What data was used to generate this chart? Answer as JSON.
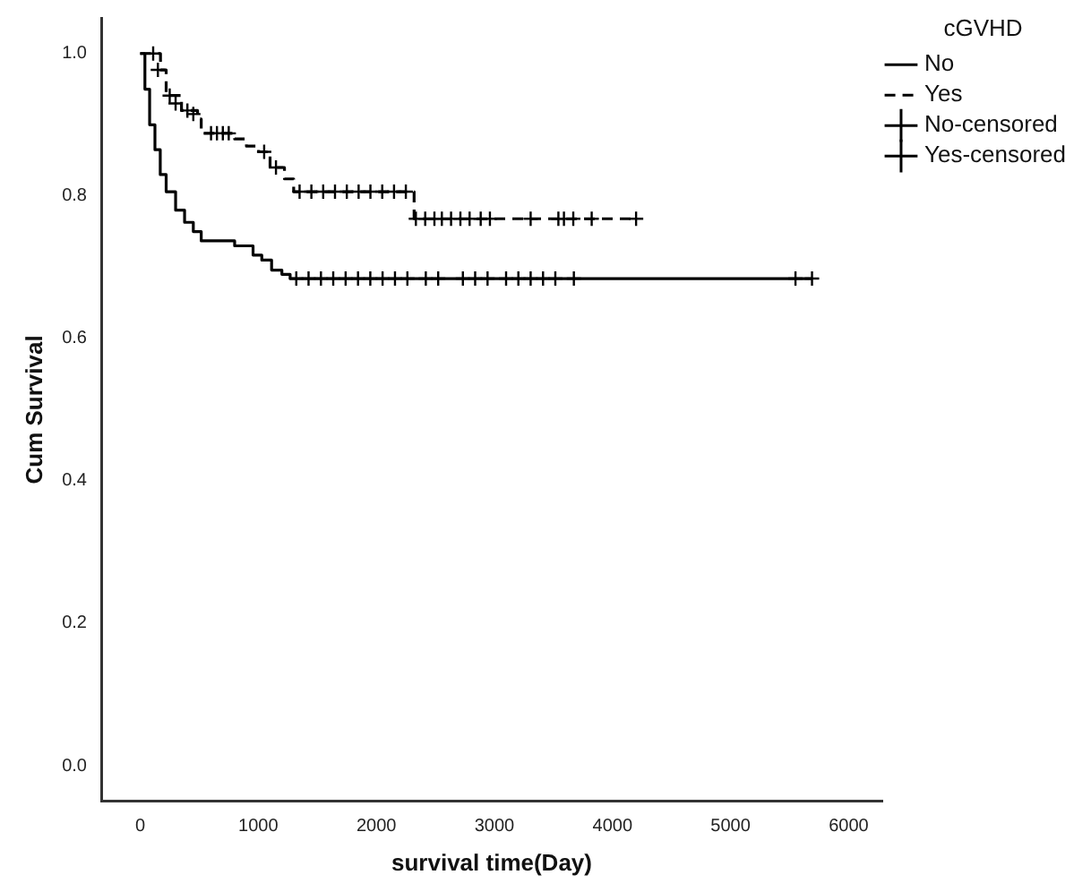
{
  "chart_data": {
    "type": "step",
    "xlabel": "survival time(Day)",
    "ylabel": "Cum Survival",
    "legend_title": "cGVHD",
    "legend": "top right",
    "grid": false,
    "marker": "none",
    "xlim": [
      -330,
      6285
    ],
    "xticks": [
      0,
      1000,
      2000,
      3000,
      4000,
      5000,
      6000
    ],
    "ylim": [
      -0.05,
      1.05
    ],
    "yticks": [
      {
        "value": 0,
        "label": "0.0"
      },
      {
        "value": 0.2,
        "label": "0.2"
      },
      {
        "value": 0.4,
        "label": "0.4"
      },
      {
        "value": 0.6,
        "label": "0.6"
      },
      {
        "value": 0.8,
        "label": "0.8"
      },
      {
        "value": 1,
        "label": "1.0"
      }
    ],
    "series": [
      {
        "name": "No",
        "color": "#000000",
        "line_style": "solid",
        "x": [
          0,
          40,
          80,
          125,
          170,
          220,
          300,
          376,
          450,
          517,
          800,
          956,
          1030,
          1113,
          1200,
          1270,
          5690
        ],
        "values": [
          1,
          0.95,
          0.9,
          0.865,
          0.83,
          0.806,
          0.78,
          0.763,
          0.75,
          0.737,
          0.73,
          0.717,
          0.71,
          0.696,
          0.69,
          0.684,
          0.684
        ]
      },
      {
        "name": "Yes",
        "color": "#000000",
        "line_style": "dashed",
        "x": [
          0,
          172,
          220,
          350,
          486,
          517,
          800,
          900,
          1003,
          1100,
          1222,
          1300,
          2320,
          4200
        ],
        "values": [
          1,
          0.977,
          0.941,
          0.92,
          0.908,
          0.888,
          0.88,
          0.87,
          0.862,
          0.84,
          0.824,
          0.806,
          0.768,
          0.768
        ]
      },
      {
        "name": "No-censored",
        "type": "scatter",
        "marker": "cross",
        "color": "#000000",
        "x": [
          1322,
          1426,
          1531,
          1635,
          1740,
          1845,
          1949,
          2053,
          2158,
          2263,
          2419,
          2524,
          2733,
          2837,
          2942,
          3099,
          3203,
          3307,
          3412,
          3516,
          3673,
          5550,
          5690
        ],
        "values": [
          0.684,
          0.684,
          0.684,
          0.684,
          0.684,
          0.684,
          0.684,
          0.684,
          0.684,
          0.684,
          0.684,
          0.684,
          0.684,
          0.684,
          0.684,
          0.684,
          0.684,
          0.684,
          0.684,
          0.684,
          0.684,
          0.684,
          0.684
        ]
      },
      {
        "name": "Yes-censored",
        "type": "scatter",
        "marker": "cross",
        "color": "#000000",
        "x": [
          110,
          150,
          250,
          300,
          400,
          450,
          600,
          650,
          700,
          750,
          1050,
          1150,
          1350,
          1450,
          1550,
          1650,
          1750,
          1850,
          1950,
          2050,
          2150,
          2250,
          2335,
          2414,
          2492,
          2555,
          2633,
          2712,
          2790,
          2884,
          2962,
          3307,
          3542,
          3589,
          3668,
          3824,
          4200
        ],
        "values": [
          1,
          0.977,
          0.941,
          0.93,
          0.92,
          0.915,
          0.888,
          0.888,
          0.888,
          0.888,
          0.862,
          0.84,
          0.806,
          0.806,
          0.806,
          0.806,
          0.806,
          0.806,
          0.806,
          0.806,
          0.806,
          0.806,
          0.768,
          0.768,
          0.768,
          0.768,
          0.768,
          0.768,
          0.768,
          0.768,
          0.768,
          0.768,
          0.768,
          0.768,
          0.768,
          0.768,
          0.768
        ]
      }
    ]
  }
}
